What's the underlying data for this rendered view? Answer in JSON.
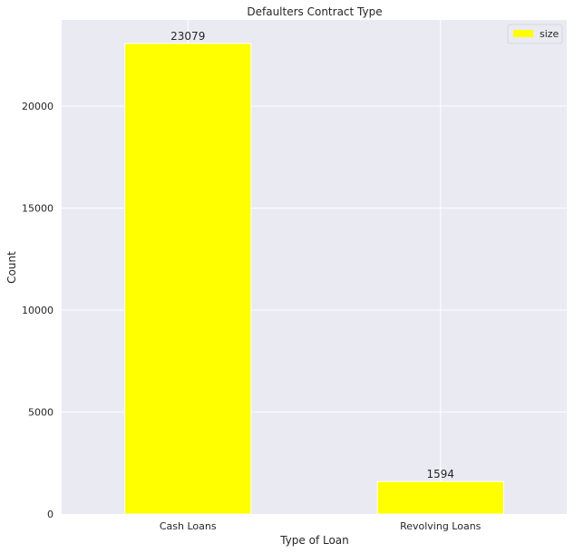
{
  "chart_data": {
    "type": "bar",
    "title": "Defaulters Contract Type",
    "xlabel": "Type of Loan",
    "ylabel": "Count",
    "categories": [
      "Cash Loans",
      "Revolving Loans"
    ],
    "series": [
      {
        "name": "size",
        "values": [
          23079,
          1594
        ],
        "color": "#ffff00"
      }
    ],
    "data_labels": [
      "23079",
      "1594"
    ],
    "ylim": [
      0,
      24232
    ],
    "yticks": [
      0,
      5000,
      10000,
      15000,
      20000
    ],
    "ytick_labels": [
      "0",
      "5000",
      "10000",
      "15000",
      "20000"
    ],
    "grid": true,
    "legend_position": "top-right",
    "colors": {
      "background": "#eaeaf2",
      "grid": "#ffffff",
      "bar": "#ffff00"
    }
  }
}
